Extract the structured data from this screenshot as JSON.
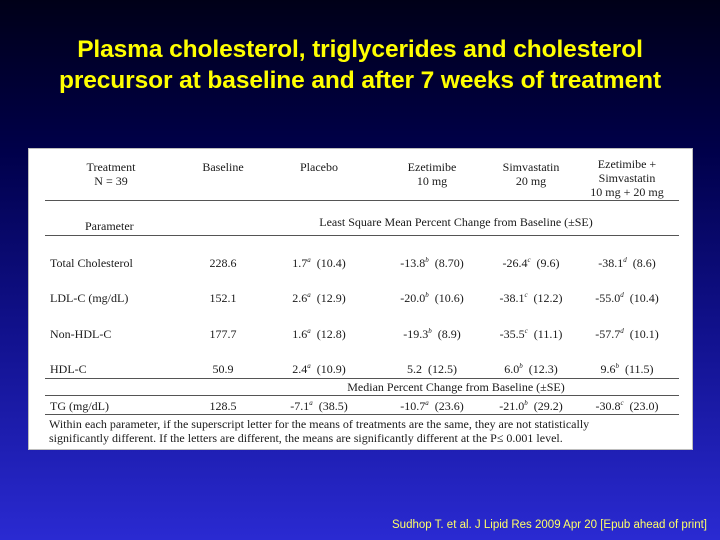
{
  "title": {
    "line1": "Plasma cholesterol, triglycerides and cholesterol",
    "line2": "precursor at baseline and after 7 weeks of treatment"
  },
  "table": {
    "head": {
      "treatment": [
        "Treatment",
        "N = 39"
      ],
      "baseline": "Baseline",
      "placebo": "Placebo",
      "ezetimibe": [
        "Ezetimibe",
        "10 mg"
      ],
      "simvastatin": [
        "Simvastatin",
        "20 mg"
      ],
      "combo": [
        "Ezetimibe +",
        "Simvastatin",
        "10 mg + 20 mg"
      ]
    },
    "parameter_label": "Parameter",
    "lsm_header": "Least Square Mean Percent Change from Baseline (±SE)",
    "median_header": "Median Percent Change from Baseline (±SE)",
    "rows": [
      {
        "name": "Total Cholesterol",
        "baseline": "228.6",
        "cells": [
          {
            "v": "1.7",
            "s": "a",
            "se": "(10.4)"
          },
          {
            "v": "-13.8",
            "s": "b",
            "se": "(8.70)"
          },
          {
            "v": "-26.4",
            "s": "c",
            "se": "(9.6)"
          },
          {
            "v": "-38.1",
            "s": "d",
            "se": "(8.6)"
          }
        ]
      },
      {
        "name": "LDL-C (mg/dL)",
        "baseline": "152.1",
        "cells": [
          {
            "v": "2.6",
            "s": "a",
            "se": "(12.9)"
          },
          {
            "v": "-20.0",
            "s": "b",
            "se": "(10.6)"
          },
          {
            "v": "-38.1",
            "s": "c",
            "se": "(12.2)"
          },
          {
            "v": "-55.0",
            "s": "d",
            "se": "(10.4)"
          }
        ]
      },
      {
        "name": "Non-HDL-C",
        "baseline": "177.7",
        "cells": [
          {
            "v": "1.6",
            "s": "a",
            "se": "(12.8)"
          },
          {
            "v": "-19.3",
            "s": "b",
            "se": "(8.9)"
          },
          {
            "v": "-35.5",
            "s": "c",
            "se": "(11.1)"
          },
          {
            "v": "-57.7",
            "s": "d",
            "se": "(10.1)"
          }
        ]
      },
      {
        "name": "HDL-C",
        "baseline": "50.9",
        "cells": [
          {
            "v": "2.4",
            "s": "a",
            "se": "(10.9)"
          },
          {
            "v": "5.2",
            "s": "",
            "se": "(12.5)"
          },
          {
            "v": "6.0",
            "s": "b",
            "se": "(12.3)"
          },
          {
            "v": "9.6",
            "s": "b",
            "se": "(11.5)"
          }
        ]
      },
      {
        "name": "TG (mg/dL)",
        "baseline": "128.5",
        "cells": [
          {
            "v": "-7.1",
            "s": "a",
            "se": "(38.5)"
          },
          {
            "v": "-10.7",
            "s": "a",
            "se": "(23.6)"
          },
          {
            "v": "-21.0",
            "s": "b",
            "se": "(29.2)"
          },
          {
            "v": "-30.8",
            "s": "c",
            "se": "(23.0)"
          }
        ]
      }
    ],
    "footnote": {
      "line1": "Within each parameter, if the superscript letter for the means of treatments are the same, they are not statistically",
      "line2": "significantly different.  If the letters are different, the means are significantly different at the P≤ 0.001 level."
    }
  },
  "citation": "Sudhop T. et al. J Lipid Res 2009 Apr 20 [Epub ahead of print]"
}
